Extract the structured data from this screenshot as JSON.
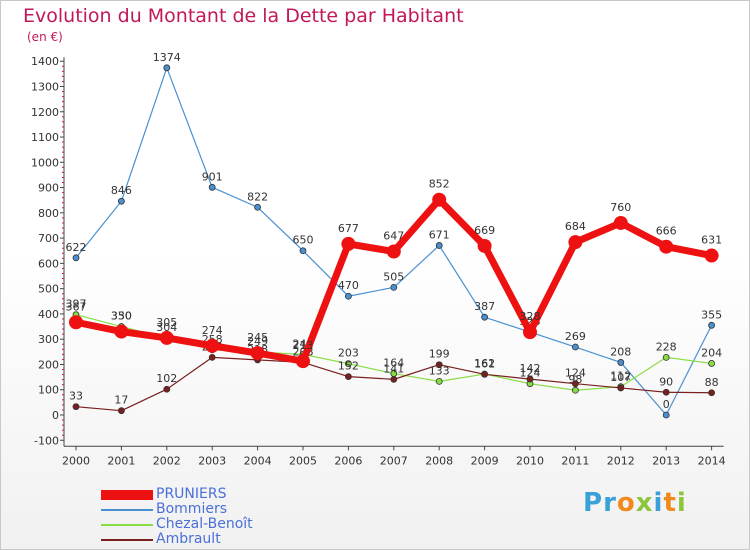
{
  "title": "Evolution du Montant de la Dette par Habitant",
  "unit_label": "(en €)",
  "logo": {
    "text": "Proxiti",
    "letter_colors": [
      "#3aa0d8",
      "#3aa0d8",
      "#f08a1c",
      "#8cc63f",
      "#3aa0d8",
      "#f08a1c",
      "#8cc63f"
    ]
  },
  "chart_data": {
    "type": "line",
    "title": "Evolution du Montant de la Dette par Habitant",
    "ylabel": "(en €)",
    "xlabel": "",
    "x": [
      "2000",
      "2001",
      "2002",
      "2003",
      "2004",
      "2005",
      "2006",
      "2007",
      "2008",
      "2009",
      "2010",
      "2011",
      "2012",
      "2013",
      "2014"
    ],
    "ylim": [
      -100,
      1400
    ],
    "yticks": [
      -100,
      0,
      100,
      200,
      300,
      400,
      500,
      600,
      700,
      800,
      900,
      1000,
      1100,
      1200,
      1300,
      1400
    ],
    "grid": false,
    "legend_position": "bottom-left",
    "series": [
      {
        "name": "PRUNIERS",
        "color": "#ee1111",
        "style": "thick",
        "values": [
          367,
          330,
          305,
          274,
          245,
          213,
          677,
          647,
          852,
          669,
          328,
          684,
          760,
          666,
          631
        ],
        "labels": [
          "367",
          "330",
          "305",
          "274",
          "245",
          "213",
          "677",
          "647",
          "852",
          "669",
          "328",
          "684",
          "760",
          "666",
          "631"
        ]
      },
      {
        "name": "Bommiers",
        "color": "#4a90d0",
        "style": "thin",
        "values": [
          622,
          846,
          1374,
          901,
          822,
          650,
          470,
          505,
          671,
          387,
          328,
          269,
          208,
          0,
          355
        ],
        "labels": [
          "622",
          "846",
          "1374",
          "901",
          "822",
          "650",
          "470",
          "505",
          "671",
          "387",
          "328",
          "269",
          "208",
          "0",
          "355"
        ]
      },
      {
        "name": "Chezal-Benoît",
        "color": "#88dd44",
        "style": "thin",
        "values": [
          397,
          350,
          304,
          258,
          249,
          240,
          203,
          164,
          133,
          162,
          124,
          98,
          112,
          228,
          204
        ],
        "labels": [
          "397",
          "350",
          "304",
          "258",
          "249",
          "240",
          "203",
          "164",
          "133",
          "162",
          "124",
          "98",
          "112",
          "228",
          "204"
        ]
      },
      {
        "name": "Ambrault",
        "color": "#7a1f1f",
        "style": "thin",
        "values": [
          33,
          17,
          102,
          228,
          218,
          208,
          152,
          141,
          199,
          161,
          142,
          124,
          107,
          90,
          88
        ],
        "labels": [
          "33",
          "17",
          "102",
          "228",
          "218",
          "208",
          "152",
          "141",
          "199",
          "161",
          "142",
          "124",
          "107",
          "90",
          "88"
        ]
      }
    ]
  }
}
